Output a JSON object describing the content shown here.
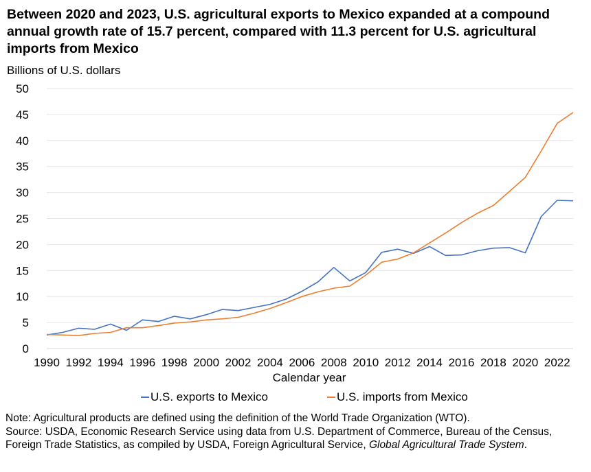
{
  "title": "Between 2020 and 2023, U.S. agricultural exports to Mexico expanded at a compound annual growth rate of 15.7 percent, compared with 11.3 percent for U.S. agricultural imports from Mexico",
  "note": "Note: Agricultural products are defined using the definition of the World Trade Organization (WTO).",
  "source_prefix": "Source: USDA, Economic Research Service using data from U.S. Department of Commerce, Bureau of the Census, Foreign Trade Statistics, as compiled by USDA, Foreign Agricultural Service, ",
  "source_italic": "Global Agricultural Trade System",
  "source_suffix": ".",
  "chart_data": {
    "type": "line",
    "title": "",
    "ylabel": "Billions of U.S. dollars",
    "xlabel": "Calendar year",
    "ylim": [
      0,
      50
    ],
    "y_ticks": [
      0,
      5,
      10,
      15,
      20,
      25,
      30,
      35,
      40,
      45,
      50
    ],
    "x_range": [
      1990,
      2023
    ],
    "x_ticks": [
      1990,
      1992,
      1994,
      1996,
      1998,
      2000,
      2002,
      2004,
      2006,
      2008,
      2010,
      2012,
      2014,
      2016,
      2018,
      2020,
      2022
    ],
    "grid": "horizontal",
    "legend_position": "bottom",
    "x": [
      1990,
      1991,
      1992,
      1993,
      1994,
      1995,
      1996,
      1997,
      1998,
      1999,
      2000,
      2001,
      2002,
      2003,
      2004,
      2005,
      2006,
      2007,
      2008,
      2009,
      2010,
      2011,
      2012,
      2013,
      2014,
      2015,
      2016,
      2017,
      2018,
      2019,
      2020,
      2021,
      2022,
      2023
    ],
    "series": [
      {
        "name": "U.S. exports to Mexico",
        "color": "#4472C4",
        "values": [
          2.6,
          3.1,
          3.9,
          3.7,
          4.7,
          3.5,
          5.5,
          5.2,
          6.2,
          5.7,
          6.5,
          7.5,
          7.3,
          7.9,
          8.5,
          9.5,
          11.0,
          12.8,
          15.6,
          13.0,
          14.6,
          18.5,
          19.1,
          18.3,
          19.6,
          17.9,
          18.0,
          18.8,
          19.3,
          19.4,
          18.4,
          25.4,
          28.5,
          28.4
        ]
      },
      {
        "name": "U.S. imports from Mexico",
        "color": "#ED7D31",
        "values": [
          2.7,
          2.6,
          2.5,
          2.9,
          3.1,
          4.0,
          4.0,
          4.4,
          4.9,
          5.1,
          5.5,
          5.7,
          6.0,
          6.8,
          7.7,
          8.8,
          10.0,
          10.9,
          11.6,
          12.0,
          14.1,
          16.6,
          17.2,
          18.4,
          20.3,
          22.2,
          24.2,
          26.0,
          27.5,
          30.2,
          32.9,
          38.0,
          43.3,
          45.4
        ]
      }
    ]
  }
}
